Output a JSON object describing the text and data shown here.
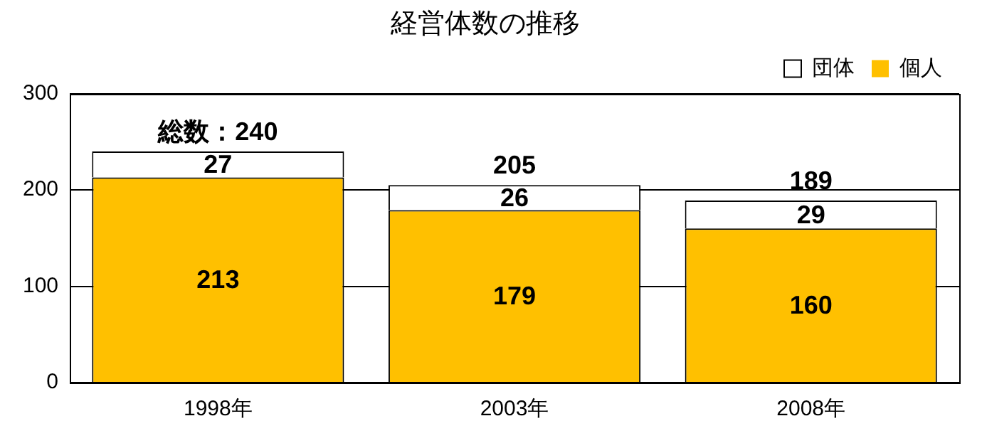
{
  "chart_data": {
    "type": "bar",
    "title": "経営体数の推移",
    "categories": [
      "1998年",
      "2003年",
      "2008年"
    ],
    "series": [
      {
        "name": "個人",
        "color": "#ffc000",
        "values": [
          213,
          179,
          160
        ]
      },
      {
        "name": "団体",
        "color": "#ffffff",
        "values": [
          27,
          26,
          29
        ]
      }
    ],
    "stacked": true,
    "data_labels": true,
    "totals": [
      "総数：240",
      "205",
      "189"
    ],
    "ylim": [
      0,
      300
    ],
    "yticks": [
      0,
      100,
      200,
      300
    ],
    "grid": "y",
    "legend": "top right"
  }
}
